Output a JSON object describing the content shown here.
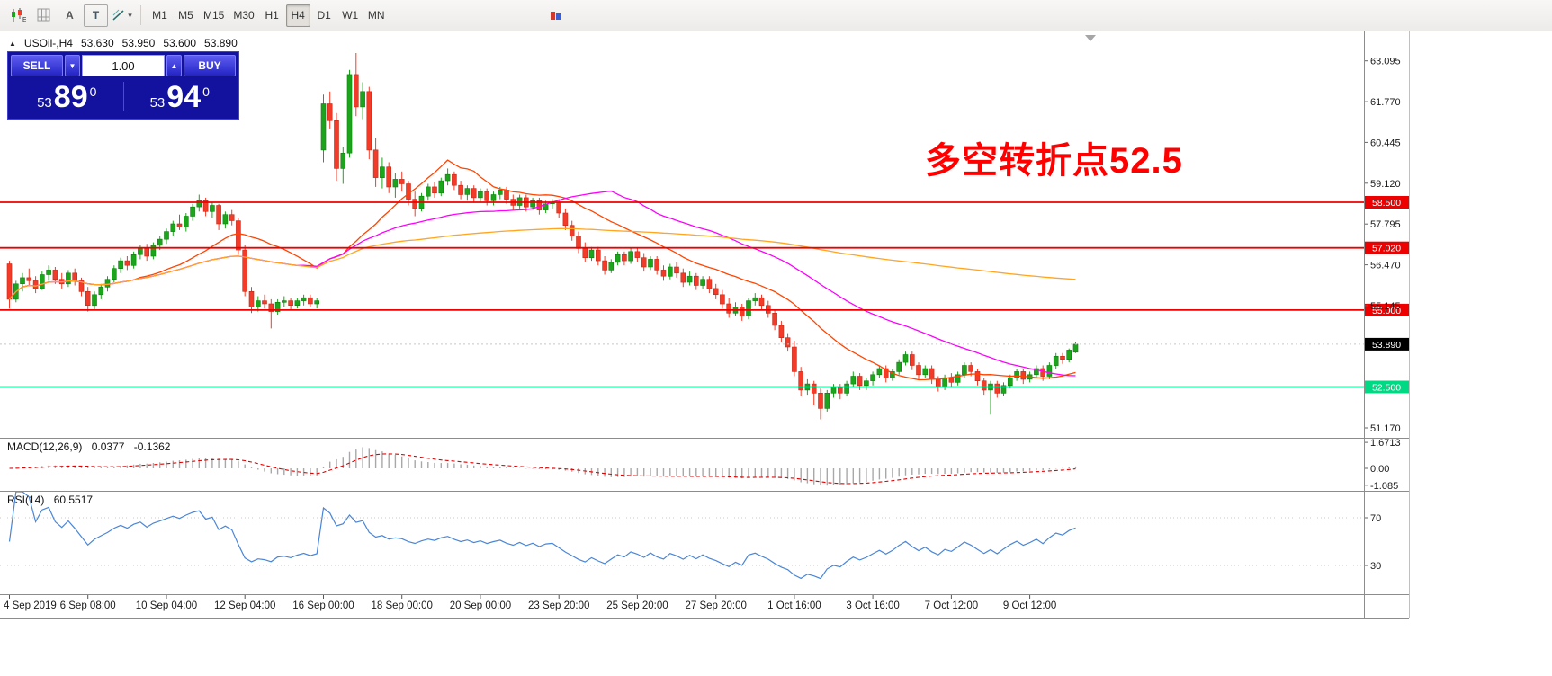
{
  "toolbar": {
    "text_tool_glyph": "A",
    "text_box_glyph": "T",
    "chevron_glyph": "▾",
    "timeframes": [
      "M1",
      "M5",
      "M15",
      "M30",
      "H1",
      "H4",
      "D1",
      "W1",
      "MN"
    ],
    "active_timeframe": "H4"
  },
  "quote_header": {
    "toggle_glyph": "▲",
    "symbol": "USOil-,H4",
    "open": "53.630",
    "high": "53.950",
    "low": "53.600",
    "close": "53.890"
  },
  "trade_panel": {
    "sell_label": "SELL",
    "buy_label": "BUY",
    "volume": "1.00",
    "spin_down_glyph": "▼",
    "spin_up_glyph": "▲",
    "sell_price": {
      "prefix": "53",
      "big": "89",
      "sup": "0"
    },
    "buy_price": {
      "prefix": "53",
      "big": "94",
      "sup": "0"
    }
  },
  "annotation": {
    "text": "多空转折点52.5",
    "color": "#ff0000"
  },
  "indicators": {
    "macd": {
      "label": "MACD(12,26,9)",
      "value_main": "0.0377",
      "value_signal": "-0.1362",
      "axis_ticks": [
        "1.6713",
        "0.00",
        "-1.085"
      ],
      "params": {
        "fast": 12,
        "slow": 26,
        "signal": 9
      },
      "histogram_color": "#a8a8a8",
      "signal_color": "#e00000"
    },
    "rsi": {
      "label": "RSI(14)",
      "value": "60.5517",
      "period": 14,
      "axis_ticks": [
        "70",
        "30"
      ],
      "levels": [
        70,
        30
      ],
      "line_color": "#4a86d8"
    }
  },
  "chart_data": {
    "type": "candlestick",
    "symbol": "USOil",
    "timeframe": "H4",
    "title": "USOil H4 candlestick chart with MACD and RSI",
    "price_range": [
      50.85,
      64.05
    ],
    "price_axis_ticks": [
      63.095,
      61.77,
      60.445,
      59.12,
      57.795,
      56.47,
      55.145,
      51.17
    ],
    "horizontal_lines": [
      {
        "value": 58.5,
        "label": "58.500",
        "color": "#ee0000"
      },
      {
        "value": 57.02,
        "label": "57.020",
        "color": "#ee0000"
      },
      {
        "value": 55.0,
        "label": "55.000",
        "color": "#ee0000"
      },
      {
        "value": 52.5,
        "label": "52.500",
        "color": "#00d984"
      }
    ],
    "bid_price": {
      "value": 53.89,
      "label": "53.890",
      "box_color": "#000000"
    },
    "moving_averages": [
      {
        "period": 20,
        "method": "sma",
        "color": "#ff4500"
      },
      {
        "period": 45,
        "method": "sma",
        "color": "#ff00ff"
      },
      {
        "period": 200,
        "method": "sma",
        "color": "#ffa520"
      }
    ],
    "up_color": "#1ca51c",
    "down_color": "#f23b28",
    "time_labels": [
      "4 Sep 2019",
      "6 Sep 08:00",
      "10 Sep 04:00",
      "12 Sep 04:00",
      "16 Sep 00:00",
      "18 Sep 00:00",
      "20 Sep 00:00",
      "23 Sep 20:00",
      "25 Sep 20:00",
      "27 Sep 20:00",
      "1 Oct 16:00",
      "3 Oct 16:00",
      "7 Oct 12:00",
      "9 Oct 12:00"
    ],
    "bars_per_label": 12,
    "candles": [
      [
        56.5,
        56.6,
        55.05,
        55.35
      ],
      [
        55.35,
        55.95,
        55.25,
        55.85
      ],
      [
        55.85,
        56.2,
        55.6,
        56.05
      ],
      [
        56.05,
        56.35,
        55.8,
        55.95
      ],
      [
        55.95,
        56.1,
        55.55,
        55.7
      ],
      [
        55.7,
        56.25,
        55.65,
        56.15
      ],
      [
        56.15,
        56.45,
        55.95,
        56.3
      ],
      [
        56.3,
        56.4,
        55.85,
        56.0
      ],
      [
        56.0,
        56.2,
        55.7,
        55.85
      ],
      [
        55.85,
        56.3,
        55.75,
        56.2
      ],
      [
        56.2,
        56.35,
        55.8,
        55.95
      ],
      [
        55.95,
        56.05,
        55.45,
        55.6
      ],
      [
        55.6,
        55.75,
        54.95,
        55.15
      ],
      [
        55.15,
        55.6,
        55.0,
        55.5
      ],
      [
        55.5,
        55.85,
        55.35,
        55.75
      ],
      [
        55.75,
        56.1,
        55.6,
        56.0
      ],
      [
        56.0,
        56.45,
        55.9,
        56.35
      ],
      [
        56.35,
        56.7,
        56.2,
        56.6
      ],
      [
        56.6,
        56.75,
        56.3,
        56.45
      ],
      [
        56.45,
        56.9,
        56.35,
        56.8
      ],
      [
        56.8,
        57.1,
        56.65,
        57.0
      ],
      [
        57.0,
        57.15,
        56.6,
        56.75
      ],
      [
        56.75,
        57.2,
        56.65,
        57.1
      ],
      [
        57.1,
        57.4,
        56.95,
        57.3
      ],
      [
        57.3,
        57.65,
        57.15,
        57.55
      ],
      [
        57.55,
        57.9,
        57.4,
        57.8
      ],
      [
        57.8,
        58.1,
        57.6,
        57.7
      ],
      [
        57.7,
        58.15,
        57.55,
        58.05
      ],
      [
        58.05,
        58.45,
        57.9,
        58.35
      ],
      [
        58.35,
        58.75,
        58.2,
        58.55
      ],
      [
        58.55,
        58.65,
        58.05,
        58.2
      ],
      [
        58.2,
        58.5,
        58.0,
        58.4
      ],
      [
        58.4,
        58.45,
        57.6,
        57.8
      ],
      [
        57.8,
        58.2,
        57.65,
        58.1
      ],
      [
        58.1,
        58.25,
        57.75,
        57.9
      ],
      [
        57.9,
        58.0,
        56.8,
        56.95
      ],
      [
        56.95,
        57.1,
        55.45,
        55.6
      ],
      [
        55.6,
        55.75,
        54.9,
        55.1
      ],
      [
        55.1,
        55.45,
        54.95,
        55.3
      ],
      [
        55.3,
        55.5,
        55.05,
        55.2
      ],
      [
        55.2,
        55.35,
        54.4,
        54.95
      ],
      [
        54.95,
        55.35,
        54.85,
        55.25
      ],
      [
        55.25,
        55.45,
        55.1,
        55.3
      ],
      [
        55.3,
        55.4,
        55.0,
        55.15
      ],
      [
        55.15,
        55.4,
        55.05,
        55.3
      ],
      [
        55.3,
        55.5,
        55.15,
        55.4
      ],
      [
        55.4,
        55.5,
        55.1,
        55.2
      ],
      [
        55.2,
        55.4,
        55.05,
        55.3
      ],
      [
        60.2,
        62.0,
        59.8,
        61.7
      ],
      [
        61.7,
        62.1,
        60.9,
        61.15
      ],
      [
        61.15,
        61.4,
        59.2,
        59.6
      ],
      [
        59.6,
        60.3,
        59.1,
        60.1
      ],
      [
        60.1,
        62.8,
        59.95,
        62.65
      ],
      [
        62.65,
        63.35,
        61.3,
        61.6
      ],
      [
        61.6,
        62.4,
        61.2,
        62.1
      ],
      [
        62.1,
        62.25,
        59.9,
        60.2
      ],
      [
        60.2,
        60.6,
        59.0,
        59.3
      ],
      [
        59.3,
        59.95,
        58.95,
        59.65
      ],
      [
        59.65,
        59.8,
        58.8,
        59.0
      ],
      [
        59.0,
        59.45,
        58.65,
        59.25
      ],
      [
        59.25,
        59.5,
        58.85,
        59.1
      ],
      [
        59.1,
        59.2,
        58.4,
        58.6
      ],
      [
        58.6,
        58.85,
        58.05,
        58.3
      ],
      [
        58.3,
        58.8,
        58.2,
        58.7
      ],
      [
        58.7,
        59.1,
        58.55,
        59.0
      ],
      [
        59.0,
        59.15,
        58.65,
        58.8
      ],
      [
        58.8,
        59.3,
        58.7,
        59.2
      ],
      [
        59.2,
        59.6,
        59.05,
        59.4
      ],
      [
        59.4,
        59.5,
        58.9,
        59.05
      ],
      [
        59.05,
        59.2,
        58.6,
        58.75
      ],
      [
        58.75,
        59.05,
        58.55,
        58.95
      ],
      [
        58.95,
        59.05,
        58.5,
        58.65
      ],
      [
        58.65,
        58.95,
        58.5,
        58.85
      ],
      [
        58.85,
        58.95,
        58.4,
        58.55
      ],
      [
        58.55,
        58.85,
        58.4,
        58.75
      ],
      [
        58.75,
        59.0,
        58.6,
        58.9
      ],
      [
        58.9,
        59.0,
        58.45,
        58.6
      ],
      [
        58.6,
        58.75,
        58.25,
        58.4
      ],
      [
        58.4,
        58.75,
        58.3,
        58.65
      ],
      [
        58.65,
        58.75,
        58.2,
        58.35
      ],
      [
        58.35,
        58.65,
        58.25,
        58.55
      ],
      [
        58.55,
        58.65,
        58.1,
        58.25
      ],
      [
        58.25,
        58.55,
        58.15,
        58.45
      ],
      [
        58.45,
        58.6,
        58.3,
        58.5
      ],
      [
        58.5,
        58.6,
        58.0,
        58.15
      ],
      [
        58.15,
        58.3,
        57.6,
        57.75
      ],
      [
        57.75,
        57.9,
        57.25,
        57.4
      ],
      [
        57.4,
        57.55,
        56.85,
        57.0
      ],
      [
        57.0,
        57.2,
        56.55,
        56.7
      ],
      [
        56.7,
        57.05,
        56.6,
        56.95
      ],
      [
        56.95,
        57.05,
        56.45,
        56.6
      ],
      [
        56.6,
        56.75,
        56.15,
        56.3
      ],
      [
        56.3,
        56.65,
        56.2,
        56.55
      ],
      [
        56.55,
        56.9,
        56.45,
        56.8
      ],
      [
        56.8,
        56.9,
        56.45,
        56.6
      ],
      [
        56.6,
        57.0,
        56.5,
        56.9
      ],
      [
        56.9,
        57.0,
        56.55,
        56.7
      ],
      [
        56.7,
        56.85,
        56.25,
        56.4
      ],
      [
        56.4,
        56.75,
        56.3,
        56.65
      ],
      [
        56.65,
        56.75,
        56.15,
        56.3
      ],
      [
        56.3,
        56.45,
        55.95,
        56.1
      ],
      [
        56.1,
        56.5,
        56.0,
        56.4
      ],
      [
        56.4,
        56.55,
        56.05,
        56.2
      ],
      [
        56.2,
        56.35,
        55.75,
        55.9
      ],
      [
        55.9,
        56.25,
        55.8,
        56.1
      ],
      [
        56.1,
        56.2,
        55.65,
        55.8
      ],
      [
        55.8,
        56.1,
        55.7,
        56.0
      ],
      [
        56.0,
        56.1,
        55.55,
        55.7
      ],
      [
        55.7,
        55.85,
        55.35,
        55.5
      ],
      [
        55.5,
        55.65,
        55.05,
        55.2
      ],
      [
        55.2,
        55.4,
        54.75,
        54.9
      ],
      [
        54.9,
        55.25,
        54.8,
        55.1
      ],
      [
        55.1,
        55.2,
        54.65,
        54.8
      ],
      [
        54.8,
        55.4,
        54.7,
        55.3
      ],
      [
        55.3,
        55.55,
        55.15,
        55.4
      ],
      [
        55.4,
        55.5,
        55.0,
        55.15
      ],
      [
        55.15,
        55.3,
        54.75,
        54.9
      ],
      [
        54.9,
        55.0,
        54.35,
        54.5
      ],
      [
        54.5,
        54.65,
        53.95,
        54.1
      ],
      [
        54.1,
        54.25,
        53.65,
        53.8
      ],
      [
        53.8,
        54.0,
        52.85,
        53.0
      ],
      [
        53.0,
        53.15,
        52.2,
        52.4
      ],
      [
        52.4,
        52.75,
        52.25,
        52.6
      ],
      [
        52.6,
        52.7,
        51.9,
        52.3
      ],
      [
        52.3,
        52.45,
        51.45,
        51.8
      ],
      [
        51.8,
        52.4,
        51.7,
        52.3
      ],
      [
        52.3,
        52.6,
        52.15,
        52.5
      ],
      [
        52.5,
        52.6,
        52.1,
        52.3
      ],
      [
        52.3,
        52.7,
        52.2,
        52.6
      ],
      [
        52.6,
        53.0,
        52.5,
        52.85
      ],
      [
        52.85,
        52.95,
        52.4,
        52.55
      ],
      [
        52.55,
        52.8,
        52.4,
        52.7
      ],
      [
        52.7,
        53.0,
        52.55,
        52.9
      ],
      [
        52.9,
        53.2,
        52.8,
        53.1
      ],
      [
        53.1,
        53.2,
        52.65,
        52.8
      ],
      [
        52.8,
        53.1,
        52.7,
        53.0
      ],
      [
        53.0,
        53.4,
        52.9,
        53.3
      ],
      [
        53.3,
        53.65,
        53.2,
        53.55
      ],
      [
        53.55,
        53.65,
        53.05,
        53.2
      ],
      [
        53.2,
        53.3,
        52.75,
        52.9
      ],
      [
        52.9,
        53.2,
        52.8,
        53.1
      ],
      [
        53.1,
        53.2,
        52.6,
        52.75
      ],
      [
        52.75,
        52.85,
        52.35,
        52.5
      ],
      [
        52.5,
        52.9,
        52.4,
        52.8
      ],
      [
        52.8,
        52.95,
        52.5,
        52.65
      ],
      [
        52.65,
        53.0,
        52.55,
        52.9
      ],
      [
        52.9,
        53.3,
        52.8,
        53.2
      ],
      [
        53.2,
        53.3,
        52.85,
        53.0
      ],
      [
        53.0,
        53.1,
        52.55,
        52.7
      ],
      [
        52.7,
        52.8,
        52.25,
        52.4
      ],
      [
        52.4,
        52.7,
        51.6,
        52.6
      ],
      [
        52.6,
        52.7,
        52.15,
        52.3
      ],
      [
        52.3,
        52.65,
        52.2,
        52.55
      ],
      [
        52.55,
        52.9,
        52.45,
        52.8
      ],
      [
        52.8,
        53.1,
        52.7,
        53.0
      ],
      [
        53.0,
        53.1,
        52.6,
        52.75
      ],
      [
        52.75,
        53.0,
        52.65,
        52.9
      ],
      [
        52.9,
        53.2,
        52.8,
        53.1
      ],
      [
        53.1,
        53.2,
        52.7,
        52.85
      ],
      [
        52.85,
        53.3,
        52.75,
        53.2
      ],
      [
        53.2,
        53.6,
        53.1,
        53.5
      ],
      [
        53.5,
        53.6,
        53.25,
        53.4
      ],
      [
        53.4,
        53.75,
        53.3,
        53.7
      ],
      [
        53.63,
        53.95,
        53.6,
        53.89
      ]
    ]
  }
}
